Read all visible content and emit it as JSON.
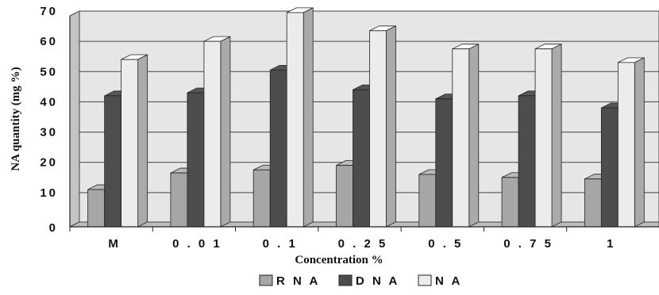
{
  "chart_data": {
    "type": "bar",
    "title": "",
    "xlabel": "Concentration %",
    "ylabel": "NA quantity (mg %)",
    "ylim": [
      0,
      70
    ],
    "yticks": [
      0,
      10,
      20,
      30,
      40,
      50,
      60,
      70
    ],
    "categories": [
      "M",
      "0.01",
      "0.1",
      "0.25",
      "0.5",
      "0.75",
      "1"
    ],
    "category_labels": [
      "M",
      "0 . 0 1",
      "0 . 1",
      "0 . 2 5",
      "0 . 5",
      "0 . 7 5",
      "1"
    ],
    "series": [
      {
        "name": "RNA",
        "legend_label": "R N A",
        "color": "#a6a6a6",
        "values": [
          11,
          16.5,
          17.5,
          19,
          16,
          15,
          14.5
        ]
      },
      {
        "name": "DNA",
        "legend_label": "D N A",
        "color": "#4d4d4d",
        "values": [
          42,
          43,
          50.5,
          44,
          41,
          42,
          38
        ]
      },
      {
        "name": "NA",
        "legend_label": "N A",
        "color": "#ececec",
        "values": [
          54,
          60,
          69.5,
          63.5,
          57.5,
          57.5,
          53
        ]
      }
    ],
    "grid": true,
    "style": "3d-clustered-column",
    "legend_position": "bottom"
  }
}
